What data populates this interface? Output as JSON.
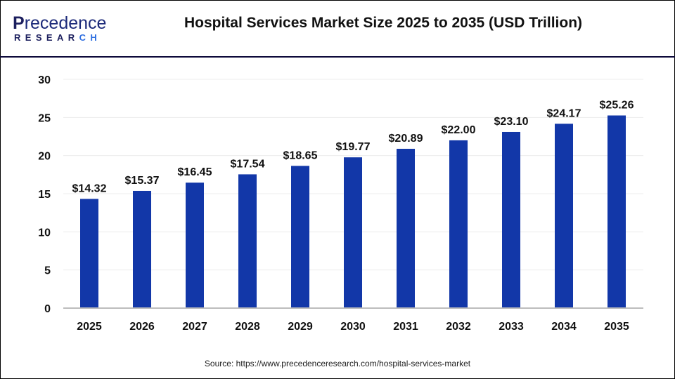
{
  "header": {
    "logo_text": "Precedence RESEARCH",
    "title": "Hospital Services Market Size 2025 to 2035 (USD Trillion)"
  },
  "source": "Source: https://www.precedenceresearch.com/hospital-services-market",
  "colors": {
    "bar": "#1237a8",
    "divider": "#0d0a3a"
  },
  "chart_data": {
    "type": "bar",
    "title": "Hospital Services Market Size 2025 to 2035 (USD Trillion)",
    "categories": [
      "2025",
      "2026",
      "2027",
      "2028",
      "2029",
      "2030",
      "2031",
      "2032",
      "2033",
      "2034",
      "2035"
    ],
    "values": [
      14.32,
      15.37,
      16.45,
      17.54,
      18.65,
      19.77,
      20.89,
      22.0,
      23.1,
      24.17,
      25.26
    ],
    "data_labels": [
      "$14.32",
      "$15.37",
      "$16.45",
      "$17.54",
      "$18.65",
      "$19.77",
      "$20.89",
      "$22.00",
      "$23.10",
      "$24.17",
      "$25.26"
    ],
    "yticks": [
      0,
      5,
      10,
      15,
      20,
      25,
      30
    ],
    "ylim": [
      0,
      30
    ],
    "grid": true,
    "xlabel": "",
    "ylabel": ""
  }
}
